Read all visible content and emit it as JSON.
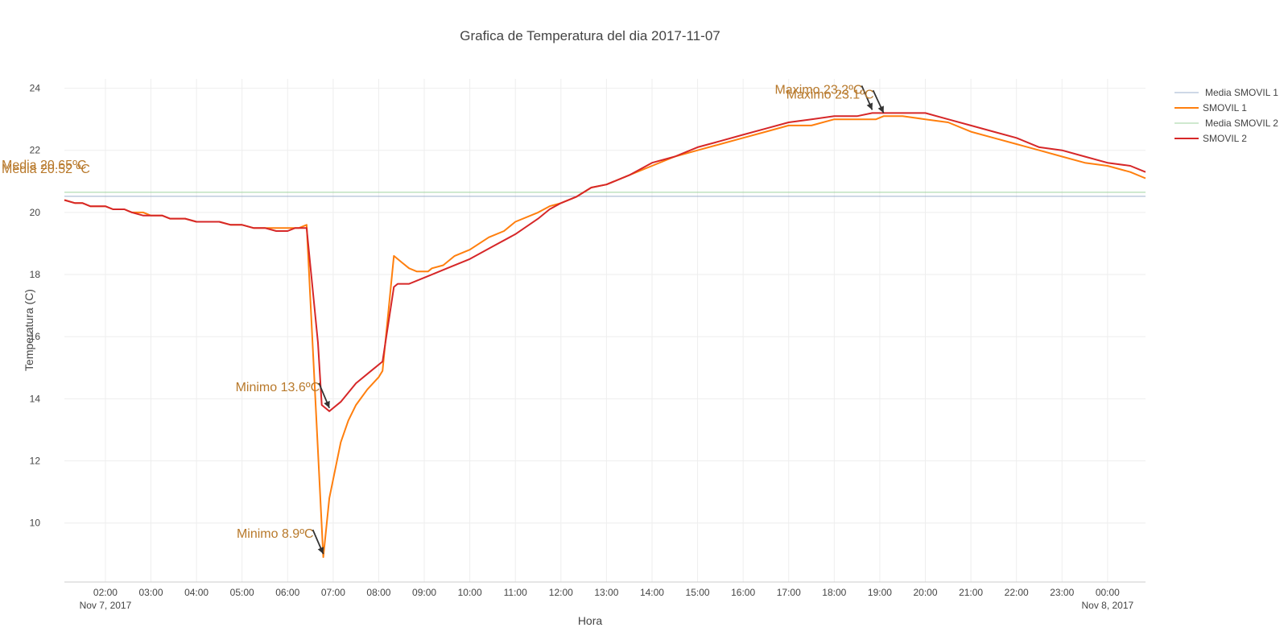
{
  "chart_data": {
    "type": "line",
    "title": "Grafica de Temperatura del dia 2017-11-07",
    "xlabel": "Hora",
    "ylabel": "Temperatura (C)",
    "x_domain": [
      "2017-11-07T01:06",
      "2017-11-08T00:50"
    ],
    "ylim": [
      8.1,
      24.3
    ],
    "x_ticks": [
      {
        "label": "02:00",
        "sub": "Nov 7, 2017",
        "t": "2017-11-07T02:00"
      },
      {
        "label": "03:00",
        "t": "2017-11-07T03:00"
      },
      {
        "label": "04:00",
        "t": "2017-11-07T04:00"
      },
      {
        "label": "05:00",
        "t": "2017-11-07T05:00"
      },
      {
        "label": "06:00",
        "t": "2017-11-07T06:00"
      },
      {
        "label": "07:00",
        "t": "2017-11-07T07:00"
      },
      {
        "label": "08:00",
        "t": "2017-11-07T08:00"
      },
      {
        "label": "09:00",
        "t": "2017-11-07T09:00"
      },
      {
        "label": "10:00",
        "t": "2017-11-07T10:00"
      },
      {
        "label": "11:00",
        "t": "2017-11-07T11:00"
      },
      {
        "label": "12:00",
        "t": "2017-11-07T12:00"
      },
      {
        "label": "13:00",
        "t": "2017-11-07T13:00"
      },
      {
        "label": "14:00",
        "t": "2017-11-07T14:00"
      },
      {
        "label": "15:00",
        "t": "2017-11-07T15:00"
      },
      {
        "label": "16:00",
        "t": "2017-11-07T16:00"
      },
      {
        "label": "17:00",
        "t": "2017-11-07T17:00"
      },
      {
        "label": "18:00",
        "t": "2017-11-07T18:00"
      },
      {
        "label": "19:00",
        "t": "2017-11-07T19:00"
      },
      {
        "label": "20:00",
        "t": "2017-11-07T20:00"
      },
      {
        "label": "21:00",
        "t": "2017-11-07T21:00"
      },
      {
        "label": "22:00",
        "t": "2017-11-07T22:00"
      },
      {
        "label": "23:00",
        "t": "2017-11-07T23:00"
      },
      {
        "label": "00:00",
        "sub": "Nov 8, 2017",
        "t": "2017-11-08T00:00"
      }
    ],
    "y_ticks": [
      10,
      12,
      14,
      16,
      18,
      20,
      22,
      24
    ],
    "grid": true,
    "legend_position": "top-right",
    "series": [
      {
        "name": "Media SMOVIL 1",
        "kind": "mean",
        "value": 20.52,
        "color": "#9db0cc"
      },
      {
        "name": "SMOVIL 1",
        "kind": "data",
        "color": "#ff7f0e",
        "points": [
          [
            "2017-11-07T01:06",
            20.4
          ],
          [
            "2017-11-07T01:20",
            20.3
          ],
          [
            "2017-11-07T01:30",
            20.3
          ],
          [
            "2017-11-07T01:40",
            20.2
          ],
          [
            "2017-11-07T02:00",
            20.2
          ],
          [
            "2017-11-07T02:10",
            20.1
          ],
          [
            "2017-11-07T02:25",
            20.1
          ],
          [
            "2017-11-07T02:35",
            20.0
          ],
          [
            "2017-11-07T02:50",
            20.0
          ],
          [
            "2017-11-07T03:00",
            19.9
          ],
          [
            "2017-11-07T03:15",
            19.9
          ],
          [
            "2017-11-07T03:25",
            19.8
          ],
          [
            "2017-11-07T03:45",
            19.8
          ],
          [
            "2017-11-07T04:00",
            19.7
          ],
          [
            "2017-11-07T04:30",
            19.7
          ],
          [
            "2017-11-07T04:45",
            19.6
          ],
          [
            "2017-11-07T05:00",
            19.6
          ],
          [
            "2017-11-07T05:15",
            19.5
          ],
          [
            "2017-11-07T05:30",
            19.5
          ],
          [
            "2017-11-07T05:45",
            19.5
          ],
          [
            "2017-11-07T06:00",
            19.5
          ],
          [
            "2017-11-07T06:15",
            19.5
          ],
          [
            "2017-11-07T06:25",
            19.6
          ],
          [
            "2017-11-07T06:47",
            8.9
          ],
          [
            "2017-11-07T06:55",
            10.8
          ],
          [
            "2017-11-07T07:10",
            12.6
          ],
          [
            "2017-11-07T07:20",
            13.3
          ],
          [
            "2017-11-07T07:30",
            13.8
          ],
          [
            "2017-11-07T07:45",
            14.3
          ],
          [
            "2017-11-07T08:00",
            14.7
          ],
          [
            "2017-11-07T08:05",
            14.9
          ],
          [
            "2017-11-07T08:20",
            18.6
          ],
          [
            "2017-11-07T08:30",
            18.4
          ],
          [
            "2017-11-07T08:40",
            18.2
          ],
          [
            "2017-11-07T08:50",
            18.1
          ],
          [
            "2017-11-07T09:05",
            18.1
          ],
          [
            "2017-11-07T09:10",
            18.2
          ],
          [
            "2017-11-07T09:25",
            18.3
          ],
          [
            "2017-11-07T09:40",
            18.6
          ],
          [
            "2017-11-07T10:00",
            18.8
          ],
          [
            "2017-11-07T10:25",
            19.2
          ],
          [
            "2017-11-07T10:45",
            19.4
          ],
          [
            "2017-11-07T11:00",
            19.7
          ],
          [
            "2017-11-07T11:30",
            20.0
          ],
          [
            "2017-11-07T11:45",
            20.2
          ],
          [
            "2017-11-07T12:00",
            20.3
          ],
          [
            "2017-11-07T12:20",
            20.5
          ],
          [
            "2017-11-07T12:40",
            20.8
          ],
          [
            "2017-11-07T13:00",
            20.9
          ],
          [
            "2017-11-07T13:30",
            21.2
          ],
          [
            "2017-11-07T14:00",
            21.5
          ],
          [
            "2017-11-07T14:30",
            21.8
          ],
          [
            "2017-11-07T15:00",
            22.0
          ],
          [
            "2017-11-07T15:30",
            22.2
          ],
          [
            "2017-11-07T16:00",
            22.4
          ],
          [
            "2017-11-07T16:30",
            22.6
          ],
          [
            "2017-11-07T17:00",
            22.8
          ],
          [
            "2017-11-07T17:30",
            22.8
          ],
          [
            "2017-11-07T18:00",
            23.0
          ],
          [
            "2017-11-07T18:30",
            23.0
          ],
          [
            "2017-11-07T18:55",
            23.0
          ],
          [
            "2017-11-07T19:05",
            23.1
          ],
          [
            "2017-11-07T19:30",
            23.1
          ],
          [
            "2017-11-07T20:00",
            23.0
          ],
          [
            "2017-11-07T20:30",
            22.9
          ],
          [
            "2017-11-07T21:00",
            22.6
          ],
          [
            "2017-11-07T21:30",
            22.4
          ],
          [
            "2017-11-07T22:00",
            22.2
          ],
          [
            "2017-11-07T22:30",
            22.0
          ],
          [
            "2017-11-07T23:00",
            21.8
          ],
          [
            "2017-11-07T23:30",
            21.6
          ],
          [
            "2017-11-08T00:00",
            21.5
          ],
          [
            "2017-11-08T00:30",
            21.3
          ],
          [
            "2017-11-08T00:50",
            21.1
          ]
        ]
      },
      {
        "name": "Media SMOVIL 2",
        "kind": "mean",
        "value": 20.65,
        "color": "#9fd39f"
      },
      {
        "name": "SMOVIL 2",
        "kind": "data",
        "color": "#d62728",
        "points": [
          [
            "2017-11-07T01:06",
            20.4
          ],
          [
            "2017-11-07T01:20",
            20.3
          ],
          [
            "2017-11-07T01:30",
            20.3
          ],
          [
            "2017-11-07T01:40",
            20.2
          ],
          [
            "2017-11-07T02:00",
            20.2
          ],
          [
            "2017-11-07T02:10",
            20.1
          ],
          [
            "2017-11-07T02:25",
            20.1
          ],
          [
            "2017-11-07T02:35",
            20.0
          ],
          [
            "2017-11-07T02:50",
            19.9
          ],
          [
            "2017-11-07T03:00",
            19.9
          ],
          [
            "2017-11-07T03:15",
            19.9
          ],
          [
            "2017-11-07T03:25",
            19.8
          ],
          [
            "2017-11-07T03:45",
            19.8
          ],
          [
            "2017-11-07T04:00",
            19.7
          ],
          [
            "2017-11-07T04:30",
            19.7
          ],
          [
            "2017-11-07T04:45",
            19.6
          ],
          [
            "2017-11-07T05:00",
            19.6
          ],
          [
            "2017-11-07T05:15",
            19.5
          ],
          [
            "2017-11-07T05:30",
            19.5
          ],
          [
            "2017-11-07T05:45",
            19.4
          ],
          [
            "2017-11-07T06:00",
            19.4
          ],
          [
            "2017-11-07T06:10",
            19.5
          ],
          [
            "2017-11-07T06:25",
            19.5
          ],
          [
            "2017-11-07T06:40",
            15.8
          ],
          [
            "2017-11-07T06:45",
            13.8
          ],
          [
            "2017-11-07T06:55",
            13.6
          ],
          [
            "2017-11-07T07:10",
            13.9
          ],
          [
            "2017-11-07T07:30",
            14.5
          ],
          [
            "2017-11-07T07:50",
            14.9
          ],
          [
            "2017-11-07T08:05",
            15.2
          ],
          [
            "2017-11-07T08:20",
            17.6
          ],
          [
            "2017-11-07T08:25",
            17.7
          ],
          [
            "2017-11-07T08:40",
            17.7
          ],
          [
            "2017-11-07T09:00",
            17.9
          ],
          [
            "2017-11-07T09:10",
            18.0
          ],
          [
            "2017-11-07T09:30",
            18.2
          ],
          [
            "2017-11-07T10:00",
            18.5
          ],
          [
            "2017-11-07T10:30",
            18.9
          ],
          [
            "2017-11-07T11:00",
            19.3
          ],
          [
            "2017-11-07T11:30",
            19.8
          ],
          [
            "2017-11-07T11:45",
            20.1
          ],
          [
            "2017-11-07T12:00",
            20.3
          ],
          [
            "2017-11-07T12:20",
            20.5
          ],
          [
            "2017-11-07T12:40",
            20.8
          ],
          [
            "2017-11-07T13:00",
            20.9
          ],
          [
            "2017-11-07T13:30",
            21.2
          ],
          [
            "2017-11-07T14:00",
            21.6
          ],
          [
            "2017-11-07T14:30",
            21.8
          ],
          [
            "2017-11-07T15:00",
            22.1
          ],
          [
            "2017-11-07T15:30",
            22.3
          ],
          [
            "2017-11-07T16:00",
            22.5
          ],
          [
            "2017-11-07T16:30",
            22.7
          ],
          [
            "2017-11-07T17:00",
            22.9
          ],
          [
            "2017-11-07T17:30",
            23.0
          ],
          [
            "2017-11-07T18:00",
            23.1
          ],
          [
            "2017-11-07T18:30",
            23.1
          ],
          [
            "2017-11-07T18:50",
            23.2
          ],
          [
            "2017-11-07T19:30",
            23.2
          ],
          [
            "2017-11-07T20:00",
            23.2
          ],
          [
            "2017-11-07T20:30",
            23.0
          ],
          [
            "2017-11-07T21:00",
            22.8
          ],
          [
            "2017-11-07T21:30",
            22.6
          ],
          [
            "2017-11-07T22:00",
            22.4
          ],
          [
            "2017-11-07T22:30",
            22.1
          ],
          [
            "2017-11-07T23:00",
            22.0
          ],
          [
            "2017-11-07T23:30",
            21.8
          ],
          [
            "2017-11-08T00:00",
            21.6
          ],
          [
            "2017-11-08T00:30",
            21.5
          ],
          [
            "2017-11-08T00:50",
            21.3
          ]
        ]
      }
    ],
    "annotations": [
      {
        "text": "Media 20.65ºC",
        "series": "Media SMOVIL 2",
        "type": "mean"
      },
      {
        "text": "Media 20.52 ºC",
        "series": "Media SMOVIL 1",
        "type": "mean"
      },
      {
        "text": "Maximo 23.2ºC",
        "t": "2017-11-07T18:50",
        "y": 23.2,
        "type": "max"
      },
      {
        "text": "Maximo 23.1ºC",
        "t": "2017-11-07T19:05",
        "y": 23.1,
        "type": "max"
      },
      {
        "text": "Minimo 13.6ºC",
        "t": "2017-11-07T06:55",
        "y": 13.6,
        "type": "min"
      },
      {
        "text": "Minimo 8.9ºC",
        "t": "2017-11-07T06:47",
        "y": 8.9,
        "type": "min"
      }
    ],
    "annotation_color": "#b8792b"
  }
}
